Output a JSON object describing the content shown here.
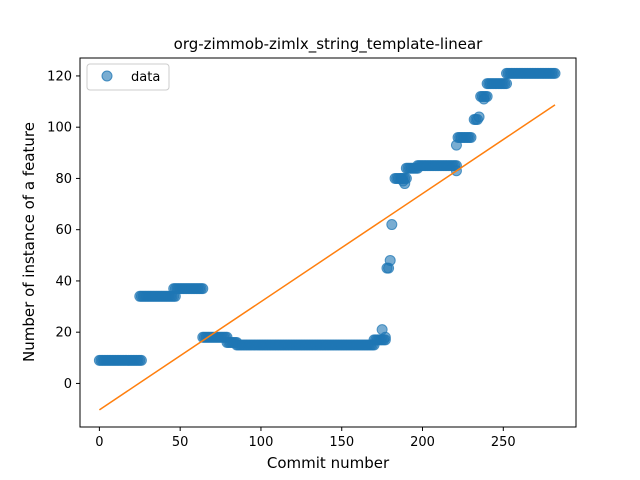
{
  "chart_data": {
    "type": "scatter",
    "title": "org-zimmob-zimlx_string_template-linear",
    "xlabel": "Commit number",
    "ylabel": "Number of instance of a feature",
    "xlim": [
      -12,
      295
    ],
    "ylim": [
      -17,
      127
    ],
    "xticks": [
      0,
      50,
      100,
      150,
      200,
      250
    ],
    "yticks": [
      0,
      20,
      40,
      60,
      80,
      100,
      120
    ],
    "grid": false,
    "legend": {
      "location": "top-left",
      "entries": [
        "data"
      ]
    },
    "colors": {
      "points": "#1f77b4",
      "fit": "#ff7f0e"
    },
    "series": [
      {
        "name": "data",
        "kind": "points",
        "segments": [
          {
            "x_start": 0,
            "x_end": 26,
            "y": 9
          },
          {
            "x_start": 25,
            "x_end": 47,
            "y": 34
          },
          {
            "x_start": 46,
            "x_end": 64,
            "y": 37
          },
          {
            "x_start": 64,
            "x_end": 79,
            "y": 18
          },
          {
            "x_start": 79,
            "x_end": 85,
            "y": 16
          },
          {
            "x_start": 85,
            "x_end": 170,
            "y": 15
          },
          {
            "x_start": 170,
            "x_end": 177,
            "y": 17
          },
          {
            "x_start": 183,
            "x_end": 190,
            "y": 80
          },
          {
            "x_start": 190,
            "x_end": 197,
            "y": 84
          },
          {
            "x_start": 197,
            "x_end": 221,
            "y": 85
          },
          {
            "x_start": 222,
            "x_end": 230,
            "y": 96
          },
          {
            "x_start": 232,
            "x_end": 234,
            "y": 103
          },
          {
            "x_start": 236,
            "x_end": 240,
            "y": 112
          },
          {
            "x_start": 240,
            "x_end": 252,
            "y": 117
          },
          {
            "x_start": 252,
            "x_end": 282,
            "y": 121
          }
        ],
        "points": [
          [
            175,
            21
          ],
          [
            177,
            18
          ],
          [
            178,
            45
          ],
          [
            179,
            45
          ],
          [
            180,
            48
          ],
          [
            181,
            62
          ],
          [
            187,
            80
          ],
          [
            188,
            79
          ],
          [
            189,
            78
          ],
          [
            221,
            83
          ],
          [
            221,
            93
          ],
          [
            235,
            104
          ],
          [
            238,
            111
          ]
        ]
      },
      {
        "name": "",
        "kind": "line",
        "x": [
          0,
          282
        ],
        "y": [
          -10.3,
          108.7
        ]
      }
    ]
  }
}
